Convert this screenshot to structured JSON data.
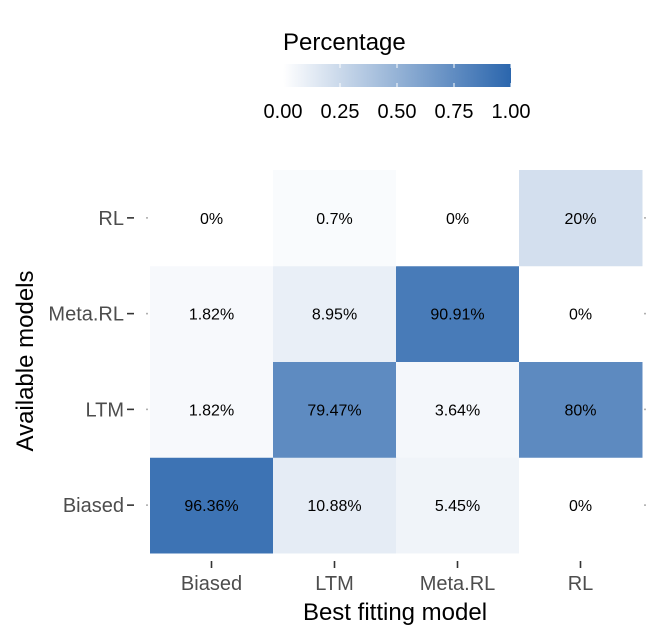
{
  "chart_data": {
    "type": "heatmap",
    "xlabel": "Best fitting model",
    "ylabel": "Available models",
    "x_categories": [
      "Biased",
      "LTM",
      "Meta.RL",
      "RL"
    ],
    "y_categories": [
      "Biased",
      "LTM",
      "Meta.RL",
      "RL"
    ],
    "values": [
      [
        0.9636,
        0.1088,
        0.0545,
        0.0
      ],
      [
        0.0182,
        0.7947,
        0.0364,
        0.8
      ],
      [
        0.0182,
        0.0895,
        0.9091,
        0.0
      ],
      [
        0.0,
        0.007,
        0.0,
        0.2
      ]
    ],
    "labels": [
      [
        "96.36%",
        "10.88%",
        "5.45%",
        "0%"
      ],
      [
        "1.82%",
        "79.47%",
        "3.64%",
        "80%"
      ],
      [
        "1.82%",
        "8.95%",
        "90.91%",
        "0%"
      ],
      [
        "0%",
        "0.7%",
        "0%",
        "20%"
      ]
    ],
    "legend": {
      "title": "Percentage",
      "position": "top",
      "range": [
        0,
        1
      ],
      "ticks": [
        "0.00",
        "0.25",
        "0.50",
        "0.75",
        "1.00"
      ],
      "color_low": "#ffffff",
      "color_high": "#2b66ad"
    }
  }
}
